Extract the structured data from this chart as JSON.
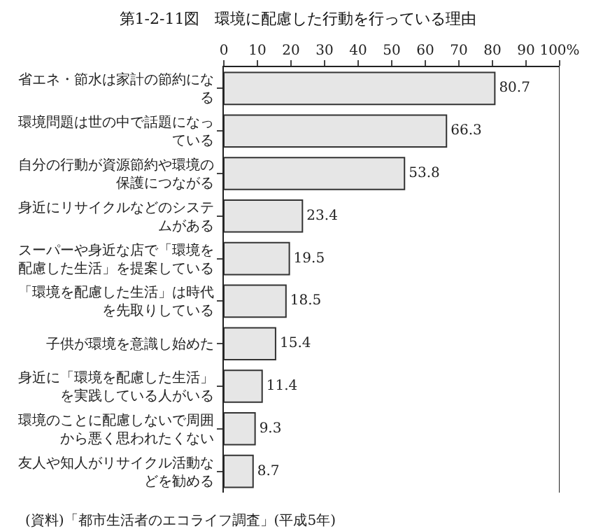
{
  "chart_data": {
    "type": "bar",
    "orientation": "horizontal",
    "title": "第1-2-11図　環境に配慮した行動を行っている理由",
    "categories": [
      "省エネ・節水は家計の節約になる",
      "環境問題は世の中で話題になっている",
      "自分の行動が資源節約や環境の保護につながる",
      "身近にリサイクルなどのシステムがある",
      "スーパーや身近な店で「環境を配慮した生活」を提案している",
      "「環境を配慮した生活」は時代を先取りしている",
      "子供が環境を意識し始めた",
      "身近に「環境を配慮した生活」を実践している人がいる",
      "環境のことに配慮しないで周囲から悪く思われたくない",
      "友人や知人がリサイクル活動などを勧める"
    ],
    "values": [
      80.7,
      66.3,
      53.8,
      23.4,
      19.5,
      18.5,
      15.4,
      11.4,
      9.3,
      8.7
    ],
    "color": "#e6e6e6",
    "data_labels": true,
    "xlim": [
      0,
      100
    ],
    "xticks": [
      0,
      10,
      20,
      30,
      40,
      50,
      60,
      70,
      80,
      90,
      {
        "value": 100,
        "label": "100%"
      }
    ],
    "annotations": [
      "(資料)「都市生活者のエコライフ調査」(平成5年)"
    ]
  }
}
